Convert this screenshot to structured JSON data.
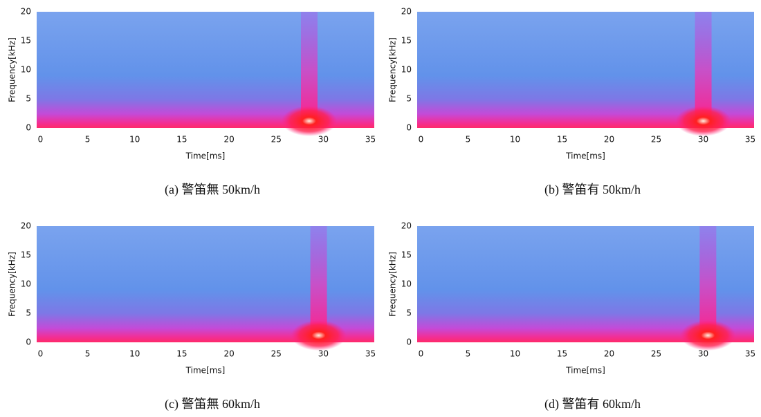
{
  "chart_data": [
    {
      "type": "spectrogram",
      "caption": "(a) 警笛無 50km/h",
      "xlabel": "Time[ms]",
      "ylabel": "Frequency[kHz]",
      "xlim": [
        -0.4,
        35.4
      ],
      "ylim": [
        0,
        20
      ],
      "xticks": [
        0,
        5,
        10,
        15,
        20,
        25,
        30,
        35
      ],
      "yticks": [
        0,
        5,
        10,
        15,
        20
      ],
      "burst_time": 28.5
    },
    {
      "type": "spectrogram",
      "caption": "(b) 警笛有 50km/h",
      "xlabel": "Time[ms]",
      "ylabel": "Frequency[kHz]",
      "xlim": [
        -0.4,
        35.4
      ],
      "ylim": [
        0,
        20
      ],
      "xticks": [
        0,
        5,
        10,
        15,
        20,
        25,
        30,
        35
      ],
      "yticks": [
        0,
        5,
        10,
        15,
        20
      ],
      "burst_time": 30
    },
    {
      "type": "spectrogram",
      "caption": "(c) 警笛無 60km/h",
      "xlabel": "Time[ms]",
      "ylabel": "Frequency[kHz]",
      "xlim": [
        -0.4,
        35.4
      ],
      "ylim": [
        0,
        20
      ],
      "xticks": [
        0,
        5,
        10,
        15,
        20,
        25,
        30,
        35
      ],
      "yticks": [
        0,
        5,
        10,
        15,
        20
      ],
      "burst_time": 29.5
    },
    {
      "type": "spectrogram",
      "caption": "(d) 警笛有 60km/h",
      "xlabel": "Time[ms]",
      "ylabel": "Frequency[kHz]",
      "xlim": [
        -0.4,
        35.4
      ],
      "ylim": [
        0,
        20
      ],
      "xticks": [
        0,
        5,
        10,
        15,
        20,
        25,
        30,
        35
      ],
      "yticks": [
        0,
        5,
        10,
        15,
        20
      ],
      "burst_time": 30.5
    }
  ]
}
